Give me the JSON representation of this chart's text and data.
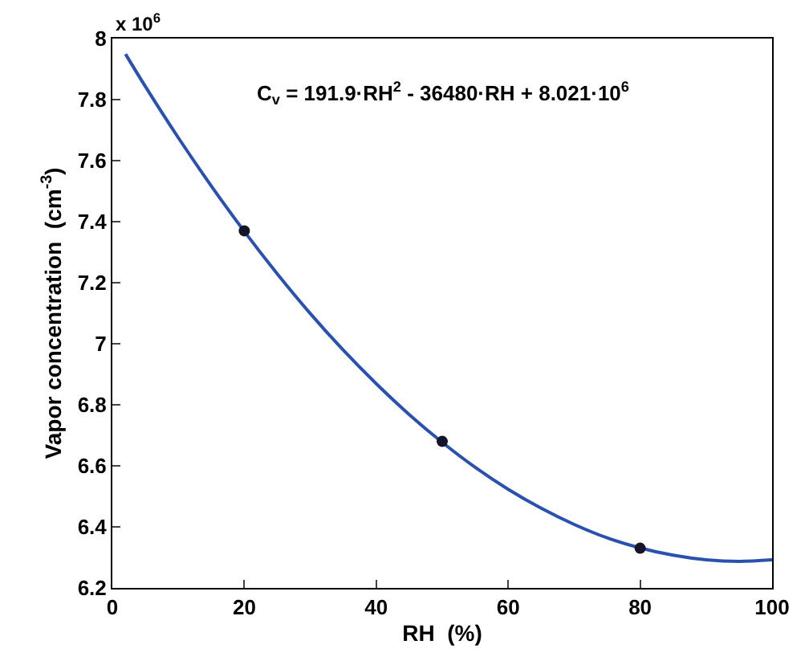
{
  "chart_data": {
    "type": "line",
    "xlabel": "RH  (%)",
    "ylabel": "Vapor concentration  (cm$^{-3}$)",
    "xlim": [
      0,
      100
    ],
    "xticks": [
      0,
      20,
      40,
      60,
      80,
      100
    ],
    "ylim": [
      6.2,
      8
    ],
    "yticks": [
      6.2,
      6.4,
      6.6,
      6.8,
      7,
      7.2,
      7.4,
      7.6,
      7.8,
      8
    ],
    "annotations": [
      "x 10$^{6}$",
      "C$_{v}$ = 191.9·RH$^{2}$ - 36480·RH + 8.021·10$^{6}$"
    ],
    "series": [
      {
        "color": "#2a50b0",
        "line_style": "solid",
        "marker": "none",
        "x": [
          2,
          5,
          10,
          15,
          20,
          25,
          30,
          35,
          40,
          45,
          50,
          55,
          60,
          65,
          70,
          75,
          80,
          85,
          90,
          95,
          100
        ],
        "values": [
          7.949,
          7.843,
          7.675,
          7.517,
          7.368,
          7.229,
          7.099,
          6.979,
          6.869,
          6.768,
          6.677,
          6.595,
          6.523,
          6.461,
          6.408,
          6.364,
          6.331,
          6.307,
          6.292,
          6.287,
          6.292
        ]
      },
      {
        "type": "scatter",
        "color": "#15152a",
        "marker": "circle",
        "x": [
          20,
          50,
          80
        ],
        "values": [
          7.37,
          6.68,
          6.33
        ]
      }
    ]
  }
}
